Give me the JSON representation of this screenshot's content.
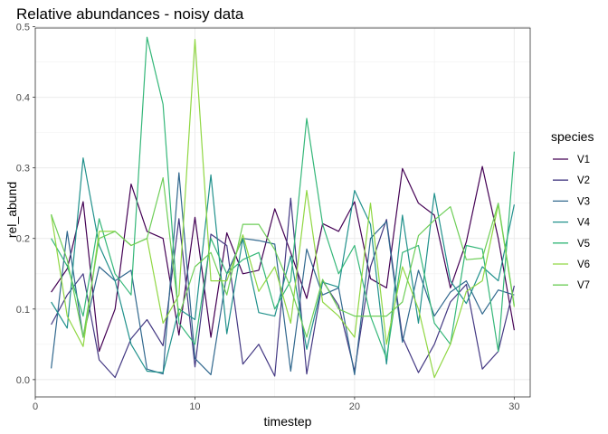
{
  "chart_data": {
    "type": "line",
    "title": "Relative abundances - noisy data",
    "xlabel": "timestep",
    "ylabel": "rel_abund",
    "xlim": [
      0,
      31
    ],
    "ylim": [
      0,
      0.5
    ],
    "x_ticks": [
      0,
      10,
      20,
      30
    ],
    "y_ticks": [
      0.0,
      0.1,
      0.2,
      0.3,
      0.4,
      0.5
    ],
    "x_tick_labels": [
      "0",
      "10",
      "20",
      "30"
    ],
    "y_tick_labels": [
      "0.0",
      "0.1",
      "0.2",
      "0.3",
      "0.4",
      "0.5"
    ],
    "grid": true,
    "legend": {
      "title": "species",
      "position": "right"
    },
    "x": [
      1,
      2,
      3,
      4,
      5,
      6,
      7,
      8,
      9,
      10,
      11,
      12,
      13,
      14,
      15,
      16,
      17,
      18,
      19,
      20,
      21,
      22,
      23,
      24,
      25,
      26,
      27,
      28,
      29,
      30
    ],
    "series": [
      {
        "name": "V1",
        "color": "#440154",
        "values": [
          0.124,
          0.157,
          0.252,
          0.04,
          0.1,
          0.277,
          0.21,
          0.2,
          0.063,
          0.23,
          0.06,
          0.208,
          0.15,
          0.155,
          0.242,
          0.18,
          0.115,
          0.221,
          0.21,
          0.252,
          0.143,
          0.13,
          0.299,
          0.25,
          0.233,
          0.13,
          0.195,
          0.302,
          0.2,
          0.07
        ]
      },
      {
        "name": "V2",
        "color": "#443983",
        "values": [
          0.078,
          0.12,
          0.15,
          0.028,
          0.003,
          0.058,
          0.085,
          0.048,
          0.228,
          0.018,
          0.206,
          0.19,
          0.022,
          0.05,
          0.005,
          0.257,
          0.008,
          0.14,
          0.105,
          0.012,
          0.16,
          0.227,
          0.06,
          0.01,
          0.05,
          0.11,
          0.135,
          0.015,
          0.04,
          0.133
        ]
      },
      {
        "name": "V3",
        "color": "#31688e",
        "values": [
          0.016,
          0.21,
          0.06,
          0.16,
          0.14,
          0.155,
          0.015,
          0.008,
          0.293,
          0.03,
          0.007,
          0.15,
          0.2,
          0.197,
          0.192,
          0.012,
          0.185,
          0.12,
          0.13,
          0.007,
          0.2,
          0.224,
          0.053,
          0.155,
          0.09,
          0.124,
          0.14,
          0.093,
          0.127,
          0.12
        ]
      },
      {
        "name": "V4",
        "color": "#21918c",
        "values": [
          0.11,
          0.073,
          0.314,
          0.19,
          0.14,
          0.05,
          0.012,
          0.01,
          0.1,
          0.085,
          0.29,
          0.065,
          0.2,
          0.095,
          0.09,
          0.175,
          0.043,
          0.138,
          0.131,
          0.268,
          0.22,
          0.022,
          0.233,
          0.08,
          0.264,
          0.14,
          0.108,
          0.16,
          0.14,
          0.248
        ]
      },
      {
        "name": "V5",
        "color": "#35b779",
        "values": [
          0.2,
          0.161,
          0.09,
          0.228,
          0.15,
          0.12,
          0.485,
          0.39,
          0.08,
          0.05,
          0.2,
          0.15,
          0.17,
          0.18,
          0.1,
          0.14,
          0.37,
          0.22,
          0.15,
          0.19,
          0.09,
          0.03,
          0.18,
          0.19,
          0.08,
          0.05,
          0.19,
          0.185,
          0.04,
          0.323
        ]
      },
      {
        "name": "V6",
        "color": "#90d743",
        "values": [
          0.234,
          0.09,
          0.047,
          0.21,
          0.21,
          0.19,
          0.2,
          0.08,
          0.12,
          0.482,
          0.14,
          0.14,
          0.205,
          0.125,
          0.16,
          0.08,
          0.268,
          0.11,
          0.09,
          0.06,
          0.25,
          0.05,
          0.16,
          0.1,
          0.003,
          0.05,
          0.125,
          0.14,
          0.248,
          0.103
        ]
      },
      {
        "name": "V7",
        "color": "#6ece58",
        "values": [
          0.234,
          0.17,
          0.06,
          0.2,
          0.21,
          0.19,
          0.2,
          0.286,
          0.09,
          0.16,
          0.18,
          0.12,
          0.22,
          0.22,
          0.184,
          0.13,
          0.06,
          0.142,
          0.1,
          0.09,
          0.09,
          0.09,
          0.11,
          0.204,
          0.226,
          0.245,
          0.17,
          0.172,
          0.25,
          0.105
        ]
      }
    ]
  }
}
